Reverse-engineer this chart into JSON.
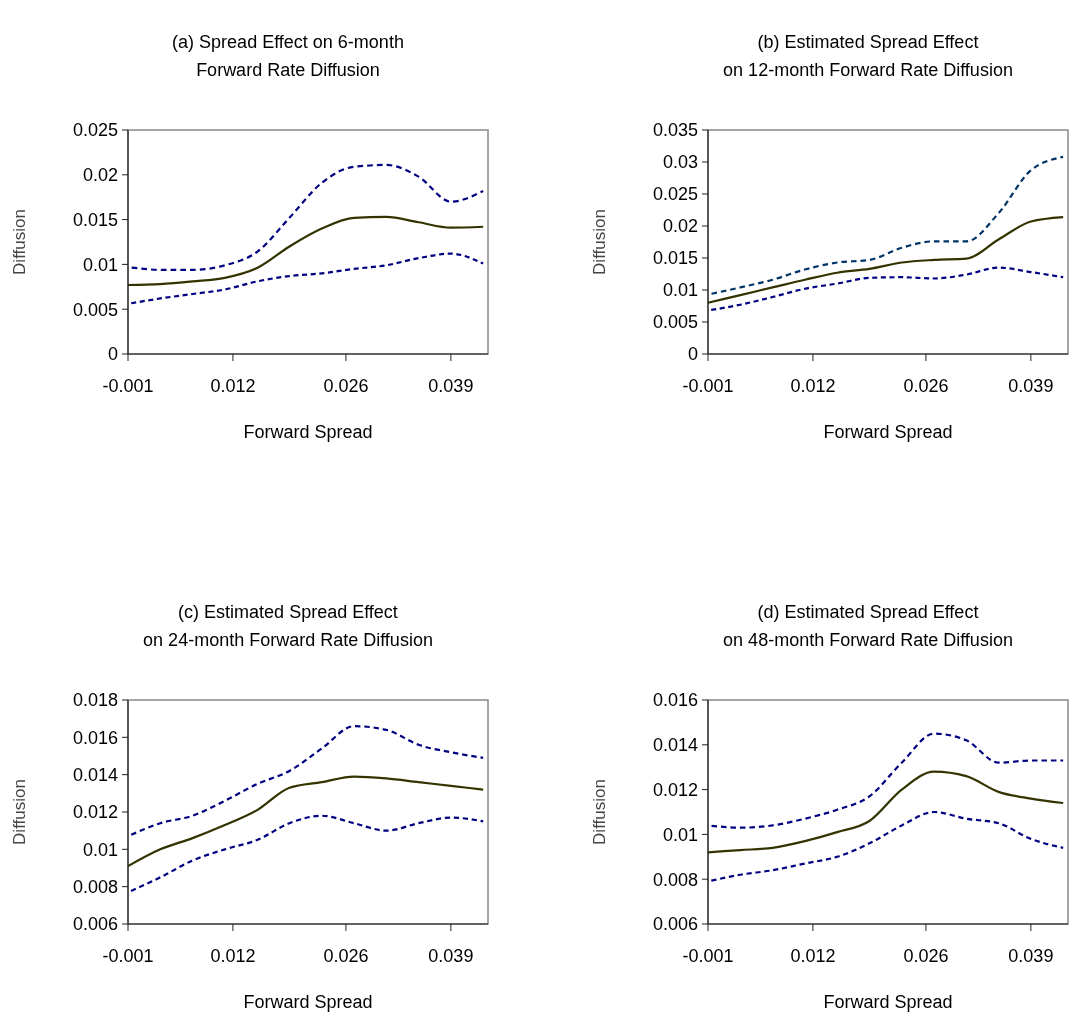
{
  "chart_data": [
    {
      "type": "line",
      "title": "(a) Spread Effect on 6-month\nForward Rate Diffusion",
      "xlabel": "Forward Spread",
      "ylabel": "Diffusion",
      "x": [
        -0.001,
        0.003,
        0.007,
        0.011,
        0.015,
        0.019,
        0.023,
        0.027,
        0.031,
        0.035,
        0.039,
        0.043
      ],
      "xlim": [
        -0.001,
        0.0436
      ],
      "xticks": [
        -0.001,
        0.012,
        0.026,
        0.039
      ],
      "ylim": [
        0,
        0.025
      ],
      "yticks": [
        0,
        0.005,
        0.01,
        0.015,
        0.02,
        0.025
      ],
      "grid": false,
      "series": [
        {
          "color": "#000080",
          "line_style": "dashed",
          "values": [
            0.0097,
            0.0094,
            0.0094,
            0.0099,
            0.0114,
            0.0152,
            0.0191,
            0.0209,
            0.0211,
            0.0198,
            0.017,
            0.0182
          ]
        },
        {
          "color": "#333300",
          "line_style": "solid",
          "values": [
            0.0077,
            0.0078,
            0.0081,
            0.0085,
            0.0096,
            0.012,
            0.014,
            0.0152,
            0.0153,
            0.0147,
            0.0141,
            0.0142
          ]
        },
        {
          "color": "#000080",
          "line_style": "dashed",
          "values": [
            0.0056,
            0.0062,
            0.0067,
            0.0072,
            0.0081,
            0.0087,
            0.009,
            0.0095,
            0.0099,
            0.0107,
            0.0112,
            0.0101
          ]
        }
      ]
    },
    {
      "type": "line",
      "title": "(b) Estimated Spread Effect\non 12-month Forward Rate Diffusion",
      "xlabel": "Forward Spread",
      "ylabel": "Diffusion",
      "x": [
        -0.001,
        0.003,
        0.007,
        0.011,
        0.015,
        0.019,
        0.023,
        0.027,
        0.031,
        0.035,
        0.039,
        0.043
      ],
      "xlim": [
        -0.001,
        0.0436
      ],
      "xticks": [
        -0.001,
        0.012,
        0.026,
        0.039
      ],
      "ylim": [
        0,
        0.035
      ],
      "yticks": [
        0,
        0.005,
        0.01,
        0.015,
        0.02,
        0.025,
        0.03,
        0.035
      ],
      "grid": false,
      "series": [
        {
          "color": "#003366",
          "line_style": "dashed",
          "values": [
            0.0093,
            0.0104,
            0.0116,
            0.0132,
            0.0143,
            0.0147,
            0.0166,
            0.0176,
            0.0176,
            0.022,
            0.0287,
            0.0308
          ]
        },
        {
          "color": "#333300",
          "line_style": "solid",
          "values": [
            0.008,
            0.0092,
            0.0104,
            0.0116,
            0.0127,
            0.0133,
            0.0143,
            0.0147,
            0.0149,
            0.0179,
            0.0207,
            0.0214
          ]
        },
        {
          "color": "#000080",
          "line_style": "dashed",
          "values": [
            0.0068,
            0.0077,
            0.0089,
            0.0102,
            0.011,
            0.0119,
            0.012,
            0.0118,
            0.0124,
            0.0135,
            0.0128,
            0.012
          ]
        }
      ]
    },
    {
      "type": "line",
      "title": "(c) Estimated Spread Effect\non 24-month Forward Rate Diffusion",
      "xlabel": "Forward Spread",
      "ylabel": "Diffusion",
      "x": [
        -0.001,
        0.003,
        0.007,
        0.011,
        0.015,
        0.019,
        0.023,
        0.027,
        0.031,
        0.035,
        0.039,
        0.043
      ],
      "xlim": [
        -0.001,
        0.0436
      ],
      "xticks": [
        -0.001,
        0.012,
        0.026,
        0.039
      ],
      "ylim": [
        0.006,
        0.018
      ],
      "yticks": [
        0.006,
        0.008,
        0.01,
        0.012,
        0.014,
        0.016,
        0.018
      ],
      "grid": false,
      "series": [
        {
          "color": "#000080",
          "line_style": "dashed",
          "values": [
            0.0107,
            0.0114,
            0.0118,
            0.0126,
            0.0135,
            0.0142,
            0.0154,
            0.0166,
            0.0164,
            0.0156,
            0.0152,
            0.0149
          ]
        },
        {
          "color": "#333300",
          "line_style": "solid",
          "values": [
            0.0091,
            0.01,
            0.0106,
            0.0113,
            0.0121,
            0.0133,
            0.0136,
            0.0139,
            0.0138,
            0.0136,
            0.0134,
            0.0132
          ]
        },
        {
          "color": "#000080",
          "line_style": "dashed",
          "values": [
            0.0077,
            0.0085,
            0.0094,
            0.01,
            0.0105,
            0.0114,
            0.0118,
            0.0114,
            0.011,
            0.0114,
            0.0117,
            0.0115
          ]
        }
      ]
    },
    {
      "type": "line",
      "title": "(d) Estimated Spread Effect\non 48-month Forward Rate Diffusion",
      "xlabel": "Forward Spread",
      "ylabel": "Diffusion",
      "x": [
        -0.001,
        0.003,
        0.007,
        0.011,
        0.015,
        0.019,
        0.023,
        0.027,
        0.031,
        0.035,
        0.039,
        0.043
      ],
      "xlim": [
        -0.001,
        0.0436
      ],
      "xticks": [
        -0.001,
        0.012,
        0.026,
        0.039
      ],
      "ylim": [
        0.006,
        0.016
      ],
      "yticks": [
        0.006,
        0.008,
        0.01,
        0.012,
        0.014,
        0.016
      ],
      "grid": false,
      "series": [
        {
          "color": "#000080",
          "line_style": "dashed",
          "values": [
            0.0104,
            0.0103,
            0.0104,
            0.0107,
            0.0111,
            0.0117,
            0.0132,
            0.0145,
            0.0142,
            0.0132,
            0.0133,
            0.0133
          ]
        },
        {
          "color": "#333300",
          "line_style": "solid",
          "values": [
            0.0092,
            0.0093,
            0.0094,
            0.0097,
            0.0101,
            0.0106,
            0.012,
            0.0128,
            0.0126,
            0.0119,
            0.0116,
            0.0114
          ]
        },
        {
          "color": "#000080",
          "line_style": "dashed",
          "values": [
            0.0079,
            0.0082,
            0.0084,
            0.0087,
            0.009,
            0.0096,
            0.0104,
            0.011,
            0.0107,
            0.0105,
            0.0098,
            0.0094
          ]
        }
      ]
    }
  ]
}
